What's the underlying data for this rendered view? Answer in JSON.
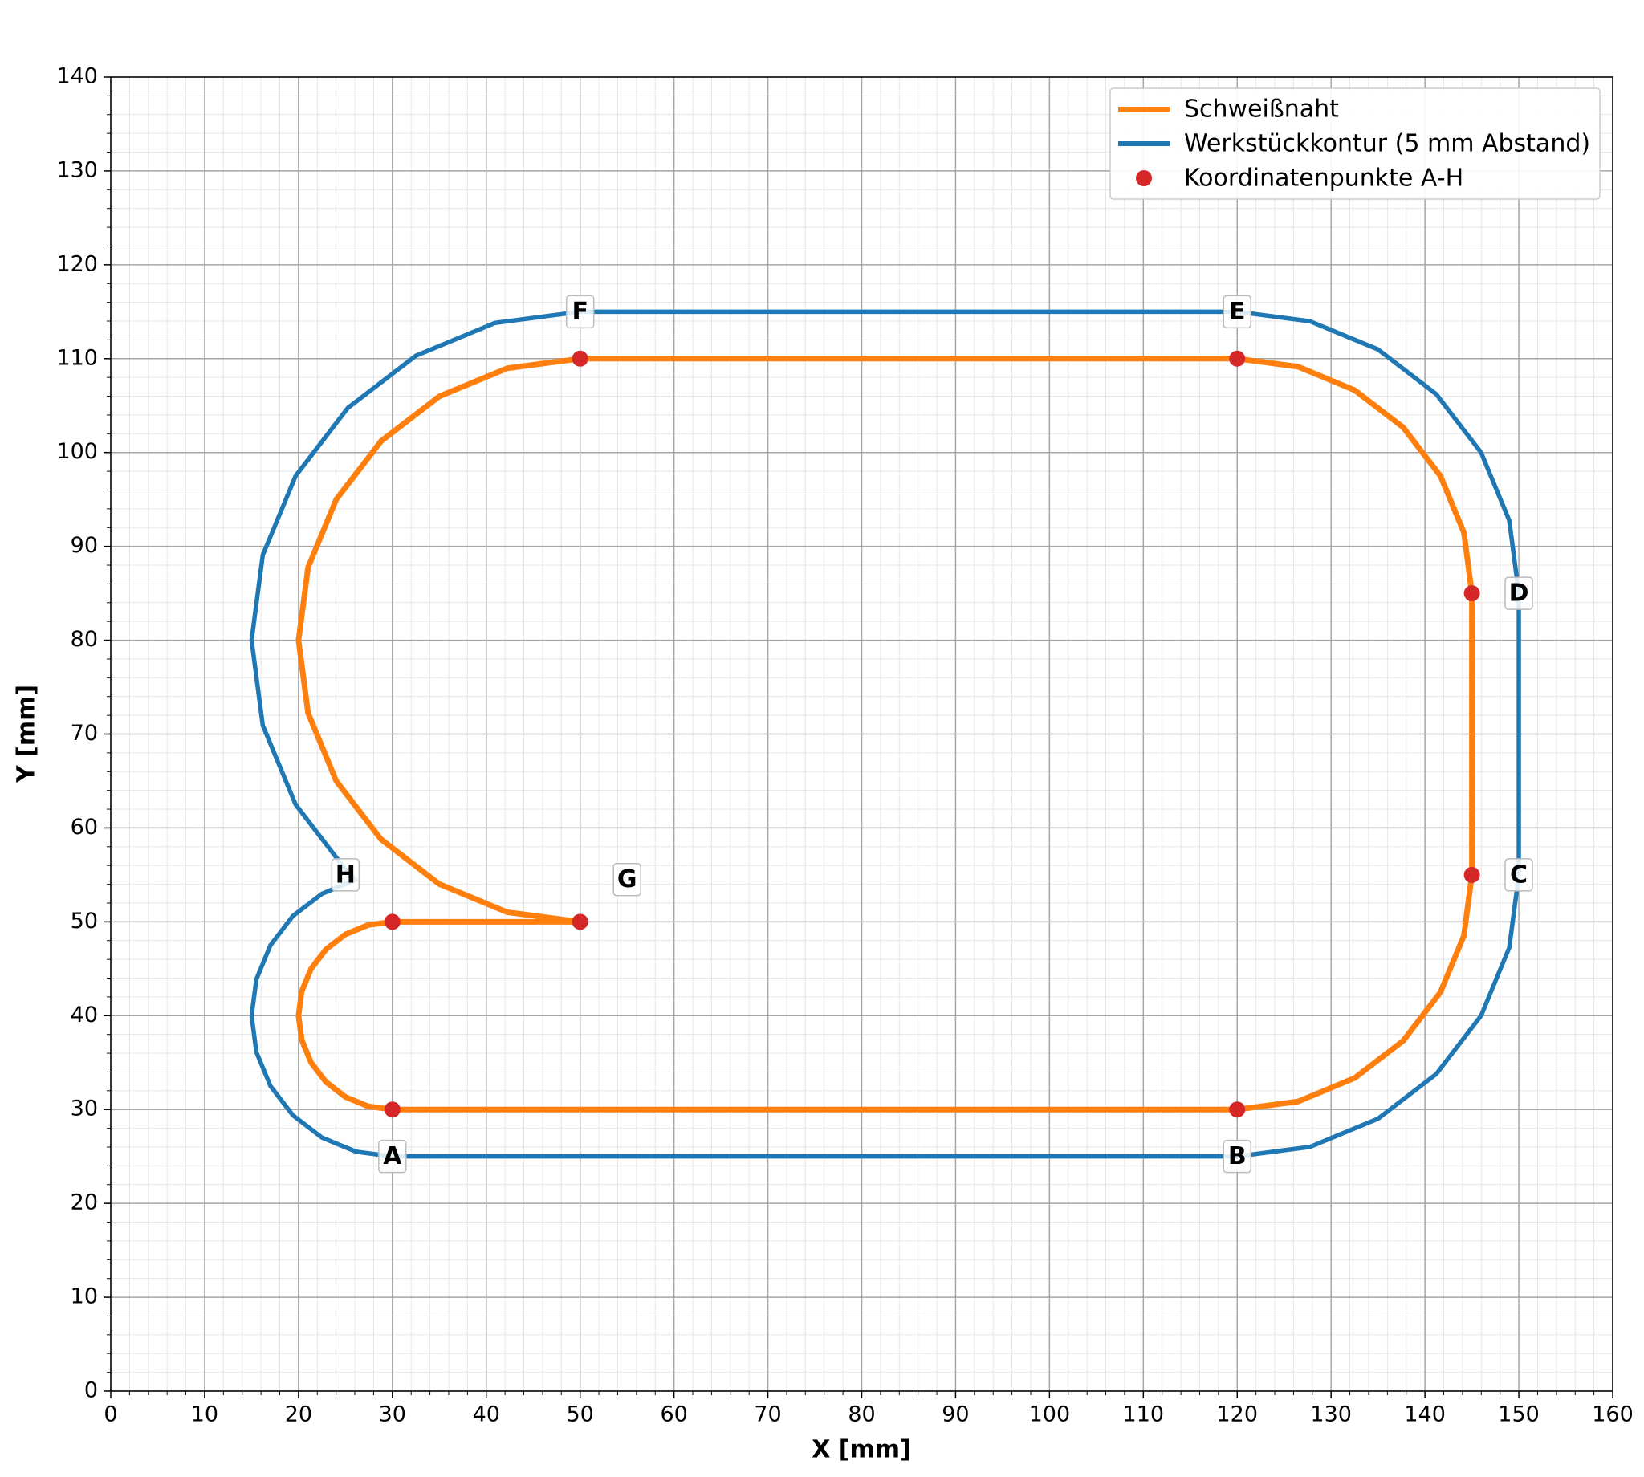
{
  "chart_data": {
    "type": "line",
    "xlabel": "X [mm]",
    "ylabel": "Y [mm]",
    "xlim": [
      0,
      160
    ],
    "ylim": [
      0,
      140
    ],
    "xticks": [
      0,
      10,
      20,
      30,
      40,
      50,
      60,
      70,
      80,
      90,
      100,
      110,
      120,
      130,
      140,
      150,
      160
    ],
    "yticks": [
      0,
      10,
      20,
      30,
      40,
      50,
      60,
      70,
      80,
      90,
      100,
      110,
      120,
      130,
      140
    ],
    "grid": true,
    "minor_grid": true,
    "legend": "upper right",
    "series": [
      {
        "name": "Schweißnaht",
        "color": "#ff7f0e",
        "x": [
          50,
          30,
          27.41,
          25,
          22.93,
          21.34,
          20.34,
          20,
          20.34,
          21.34,
          22.93,
          25,
          27.41,
          30,
          120,
          126.47,
          132.5,
          137.68,
          141.65,
          144.15,
          145,
          145,
          144.15,
          141.65,
          137.68,
          132.5,
          126.47,
          120,
          50,
          42.24,
          35,
          28.79,
          24.02,
          21.02,
          20,
          21.02,
          24.02,
          28.79,
          35,
          42.24,
          50
        ],
        "y": [
          50,
          50,
          49.66,
          48.66,
          47.07,
          45,
          42.59,
          40,
          37.41,
          35,
          32.93,
          31.34,
          30.34,
          30,
          30,
          30.85,
          33.35,
          37.32,
          42.5,
          48.53,
          55,
          85,
          91.47,
          97.5,
          102.68,
          106.65,
          109.15,
          110,
          110,
          108.98,
          105.98,
          101.21,
          95,
          87.76,
          80,
          72.24,
          65,
          58.79,
          54.02,
          51.02,
          50
        ]
      },
      {
        "name": "Werkstückkontur (5 mm Abstand)",
        "color": "#1f77b4",
        "x": [
          26.06,
          22.5,
          19.39,
          17.01,
          15.51,
          15,
          15.51,
          17.01,
          19.39,
          22.5,
          26.12,
          30,
          120,
          127.76,
          135,
          141.21,
          145.98,
          148.98,
          150,
          150,
          148.98,
          145.98,
          141.21,
          135,
          127.76,
          120,
          50,
          40.94,
          32.5,
          25.25,
          19.69,
          16.19,
          15,
          16.19,
          19.69,
          25.25,
          26.06
        ],
        "y": [
          54.47,
          52.99,
          50.61,
          47.5,
          43.88,
          40,
          36.12,
          32.5,
          29.39,
          27.01,
          25.51,
          25,
          25,
          26.02,
          29.02,
          33.79,
          40,
          47.24,
          55,
          85,
          92.76,
          100,
          106.21,
          110.98,
          113.98,
          115,
          115,
          113.81,
          110.31,
          104.75,
          97.5,
          89.06,
          80,
          70.94,
          62.5,
          55.25,
          54.47
        ]
      },
      {
        "name": "Koordinatenpunkte A-H",
        "color": "#d62728",
        "marker": true,
        "x": [
          30,
          120,
          145,
          145,
          120,
          50,
          50,
          30
        ],
        "y": [
          30,
          30,
          55,
          85,
          110,
          110,
          50,
          50
        ]
      }
    ],
    "annotations": [
      {
        "text": "A",
        "x": 30,
        "y": 25
      },
      {
        "text": "B",
        "x": 120,
        "y": 25
      },
      {
        "text": "C",
        "x": 150,
        "y": 55
      },
      {
        "text": "D",
        "x": 150,
        "y": 85
      },
      {
        "text": "E",
        "x": 120,
        "y": 115
      },
      {
        "text": "F",
        "x": 50,
        "y": 115
      },
      {
        "text": "G",
        "x": 55,
        "y": 54.5
      },
      {
        "text": "H",
        "x": 25,
        "y": 55
      }
    ]
  }
}
